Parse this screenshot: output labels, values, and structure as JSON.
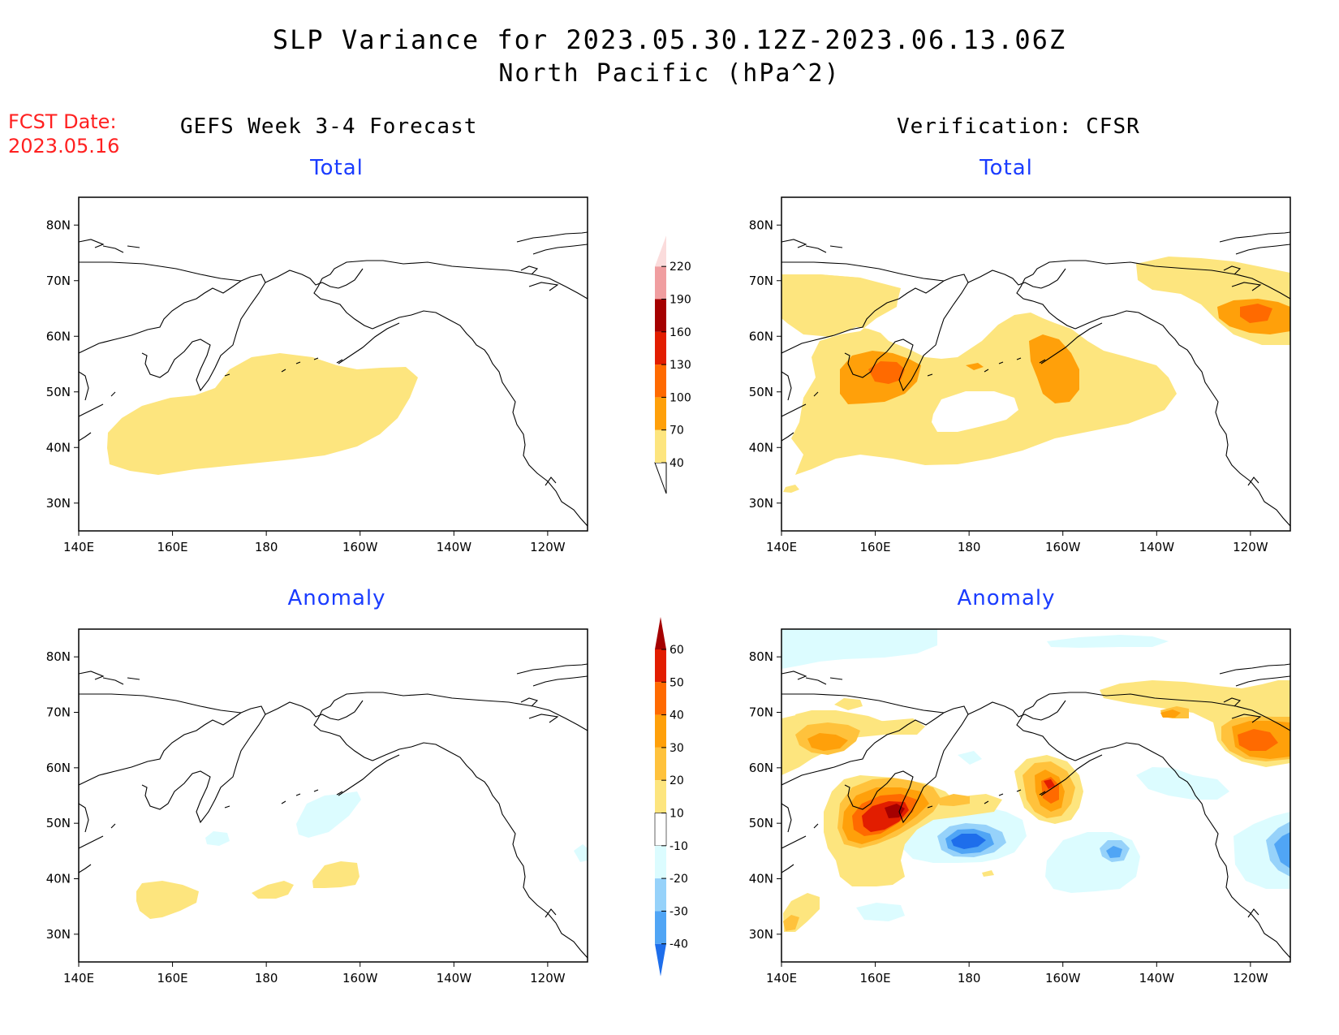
{
  "title": {
    "line1": "SLP Variance for 2023.05.30.12Z-2023.06.13.06Z",
    "line2": "North Pacific (hPa^2)"
  },
  "fcst": {
    "label": "FCST Date:",
    "date": "2023.05.16"
  },
  "headers": {
    "left": "GEFS Week 3-4 Forecast",
    "right": "Verification: CFSR"
  },
  "panels": [
    {
      "id": "tl",
      "subtitle": "Total"
    },
    {
      "id": "tr",
      "subtitle": "Total"
    },
    {
      "id": "bl",
      "subtitle": "Anomaly"
    },
    {
      "id": "br",
      "subtitle": "Anomaly"
    }
  ],
  "axes": {
    "lon_labels": [
      "140E",
      "160E",
      "180",
      "160W",
      "140W",
      "120W"
    ],
    "lat_labels": [
      "80N",
      "70N",
      "60N",
      "50N",
      "40N",
      "30N"
    ]
  },
  "colorbars": {
    "total": {
      "levels": [
        "40",
        "70",
        "100",
        "130",
        "160",
        "190",
        "220"
      ],
      "colors": [
        "#fde57e",
        "#ffa00a",
        "#ff6a00",
        "#e21d00",
        "#a50000",
        "#f09ea0",
        "#fbdcdc"
      ]
    },
    "anomaly": {
      "levels": [
        "60",
        "50",
        "40",
        "30",
        "20",
        "10",
        "-10",
        "-20",
        "-30",
        "-40"
      ],
      "colors": [
        "#a50000",
        "#e21d00",
        "#ff6a00",
        "#ffa00a",
        "#ffc23c",
        "#fde57e",
        "#ffffff",
        "#dcfcff",
        "#96d2fa",
        "#50a5f5",
        "#1e6eeb"
      ]
    }
  }
}
